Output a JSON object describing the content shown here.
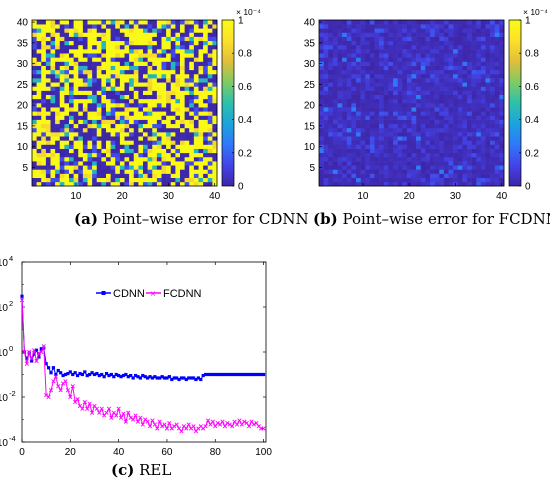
{
  "captions": {
    "a": {
      "letter": "(a)",
      "text": "Point–wise error for CDNN"
    },
    "b": {
      "letter": "(b)",
      "text": "Point–wise error for FCDNN"
    },
    "c": {
      "letter": "(c)",
      "text": "REL"
    }
  },
  "colors": {
    "axes": "#000000",
    "cdnn": "#0000ff",
    "fcdnn": "#ff00ff",
    "colormap": [
      "#3e26a8",
      "#4443e9",
      "#2f78fa",
      "#1ca3dd",
      "#2dc0ac",
      "#7ecb64",
      "#e1be3a",
      "#fbe12a",
      "#f9fb15"
    ]
  },
  "chart_data": [
    {
      "type": "heatmap",
      "id": "a",
      "grid_size": [
        40,
        40
      ],
      "xlim": [
        0.5,
        40.5
      ],
      "ylim": [
        0.5,
        40.5
      ],
      "xticks": [
        "10",
        "20",
        "30",
        "40"
      ],
      "yticks": [
        "5",
        "10",
        "15",
        "20",
        "25",
        "30",
        "35",
        "40"
      ],
      "colorbar": {
        "min": 0,
        "max": 1,
        "exponent_label": "× 10⁻⁴",
        "ticks": [
          "0",
          "0.2",
          "0.4",
          "0.6",
          "0.8",
          "1"
        ]
      },
      "values_description": "binary-like pattern: values near 0 or saturated at 1e-4 with some intermediate cells",
      "value_levels": [
        0,
        0.15,
        0.45,
        0.85,
        1.0
      ],
      "level_weights": [
        0.35,
        0.08,
        0.07,
        0.08,
        0.42
      ],
      "seed": 7
    },
    {
      "type": "heatmap",
      "id": "b",
      "grid_size": [
        40,
        40
      ],
      "xlim": [
        0.5,
        40.5
      ],
      "ylim": [
        0.5,
        40.5
      ],
      "xticks": [
        "10",
        "20",
        "30",
        "40"
      ],
      "yticks": [
        "5",
        "10",
        "15",
        "20",
        "25",
        "30",
        "35",
        "40"
      ],
      "colorbar": {
        "min": 0,
        "max": 1,
        "exponent_label": "× 10⁻⁴",
        "ticks": [
          "0",
          "0.2",
          "0.4",
          "0.6",
          "0.8",
          "1"
        ]
      },
      "values_description": "mostly near zero with scattered low values up to ~0.3e-4",
      "value_levels": [
        0.02,
        0.06,
        0.1,
        0.16,
        0.26
      ],
      "level_weights": [
        0.55,
        0.25,
        0.12,
        0.06,
        0.02
      ],
      "seed": 19
    },
    {
      "type": "line",
      "id": "c",
      "yscale": "log",
      "xlim": [
        0,
        101
      ],
      "ylim": [
        0.0001,
        10000
      ],
      "xticks": [
        "0",
        "20",
        "40",
        "60",
        "80",
        "100"
      ],
      "yticks": [
        {
          "base": "10",
          "exp": "-4"
        },
        {
          "base": "10",
          "exp": "-2"
        },
        {
          "base": "10",
          "exp": "0"
        },
        {
          "base": "10",
          "exp": "2"
        },
        {
          "base": "10",
          "exp": "4"
        }
      ],
      "legend": {
        "placement": "top-center",
        "inside": true
      },
      "series": [
        {
          "name": "CDNN",
          "marker": "square",
          "x": [
            0,
            1,
            2,
            3,
            4,
            5,
            6,
            7,
            8,
            9,
            10,
            11,
            12,
            13,
            14,
            15,
            16,
            17,
            18,
            19,
            20,
            21,
            22,
            23,
            24,
            25,
            26,
            27,
            28,
            29,
            30,
            31,
            32,
            33,
            34,
            35,
            36,
            37,
            38,
            39,
            40,
            41,
            42,
            43,
            44,
            45,
            46,
            47,
            48,
            49,
            50,
            51,
            52,
            53,
            54,
            55,
            56,
            57,
            58,
            59,
            60,
            61,
            62,
            63,
            64,
            65,
            66,
            67,
            68,
            69,
            70,
            71,
            72,
            73,
            74,
            75,
            76,
            77,
            78,
            79,
            80,
            81,
            82,
            83,
            84,
            85,
            86,
            87,
            88,
            89,
            90,
            91,
            92,
            93,
            94,
            95,
            96,
            97,
            98,
            99,
            100
          ],
          "y": [
            300,
            1,
            0.5,
            0.9,
            0.4,
            0.8,
            1.2,
            0.6,
            1.4,
            1.5,
            0.3,
            0.2,
            0.12,
            0.2,
            0.1,
            0.15,
            0.12,
            0.09,
            0.1,
            0.11,
            0.13,
            0.1,
            0.12,
            0.09,
            0.11,
            0.1,
            0.13,
            0.09,
            0.1,
            0.12,
            0.1,
            0.11,
            0.09,
            0.1,
            0.08,
            0.11,
            0.09,
            0.1,
            0.08,
            0.1,
            0.09,
            0.08,
            0.09,
            0.1,
            0.08,
            0.09,
            0.07,
            0.09,
            0.08,
            0.07,
            0.09,
            0.08,
            0.07,
            0.08,
            0.07,
            0.08,
            0.07,
            0.07,
            0.08,
            0.07,
            0.07,
            0.08,
            0.06,
            0.07,
            0.07,
            0.06,
            0.07,
            0.07,
            0.06,
            0.07,
            0.07,
            0.07,
            0.06,
            0.07,
            0.06,
            0.09,
            0.1,
            0.1,
            0.1,
            0.1,
            0.1,
            0.1,
            0.1,
            0.1,
            0.1,
            0.1,
            0.1,
            0.1,
            0.1,
            0.1,
            0.1,
            0.1,
            0.1,
            0.1,
            0.1,
            0.1,
            0.1,
            0.1,
            0.1,
            0.1,
            0.1
          ]
        },
        {
          "name": "FCDNN",
          "marker": "x",
          "x": [
            0,
            1,
            2,
            3,
            4,
            5,
            6,
            7,
            8,
            9,
            10,
            11,
            12,
            13,
            14,
            15,
            16,
            17,
            18,
            19,
            20,
            21,
            22,
            23,
            24,
            25,
            26,
            27,
            28,
            29,
            30,
            31,
            32,
            33,
            34,
            35,
            36,
            37,
            38,
            39,
            40,
            41,
            42,
            43,
            44,
            45,
            46,
            47,
            48,
            49,
            50,
            51,
            52,
            53,
            54,
            55,
            56,
            57,
            58,
            59,
            60,
            61,
            62,
            63,
            64,
            65,
            66,
            67,
            68,
            69,
            70,
            71,
            72,
            73,
            74,
            75,
            76,
            77,
            78,
            79,
            80,
            81,
            82,
            83,
            84,
            85,
            86,
            87,
            88,
            89,
            90,
            91,
            92,
            93,
            94,
            95,
            96,
            97,
            98,
            99,
            100
          ],
          "y": [
            200,
            1,
            0.3,
            1,
            0.5,
            1.2,
            0.4,
            0.9,
            1,
            1.8,
            0.012,
            0.01,
            0.02,
            0.05,
            0.08,
            0.03,
            0.02,
            0.04,
            0.05,
            0.02,
            0.01,
            0.03,
            0.006,
            0.008,
            0.004,
            0.003,
            0.006,
            0.003,
            0.005,
            0.002,
            0.004,
            0.003,
            0.002,
            0.003,
            0.0015,
            0.002,
            0.003,
            0.0012,
            0.002,
            0.0015,
            0.003,
            0.0012,
            0.0018,
            0.0008,
            0.002,
            0.0012,
            0.001,
            0.0015,
            0.0008,
            0.0012,
            0.0006,
            0.001,
            0.0008,
            0.0005,
            0.0009,
            0.0006,
            0.0004,
            0.0008,
            0.0005,
            0.0006,
            0.0004,
            0.0007,
            0.0004,
            0.0005,
            0.0006,
            0.0004,
            0.0003,
            0.0005,
            0.0004,
            0.0006,
            0.0004,
            0.0005,
            0.0003,
            0.0004,
            0.0005,
            0.0004,
            0.0005,
            0.0009,
            0.0006,
            0.0008,
            0.0005,
            0.0007,
            0.0006,
            0.0008,
            0.0005,
            0.0007,
            0.0006,
            0.0005,
            0.0008,
            0.0006,
            0.0009,
            0.0006,
            0.0008,
            0.0007,
            0.0005,
            0.0008,
            0.0006,
            0.0007,
            0.0005,
            0.0004,
            0.0004
          ]
        }
      ]
    }
  ]
}
